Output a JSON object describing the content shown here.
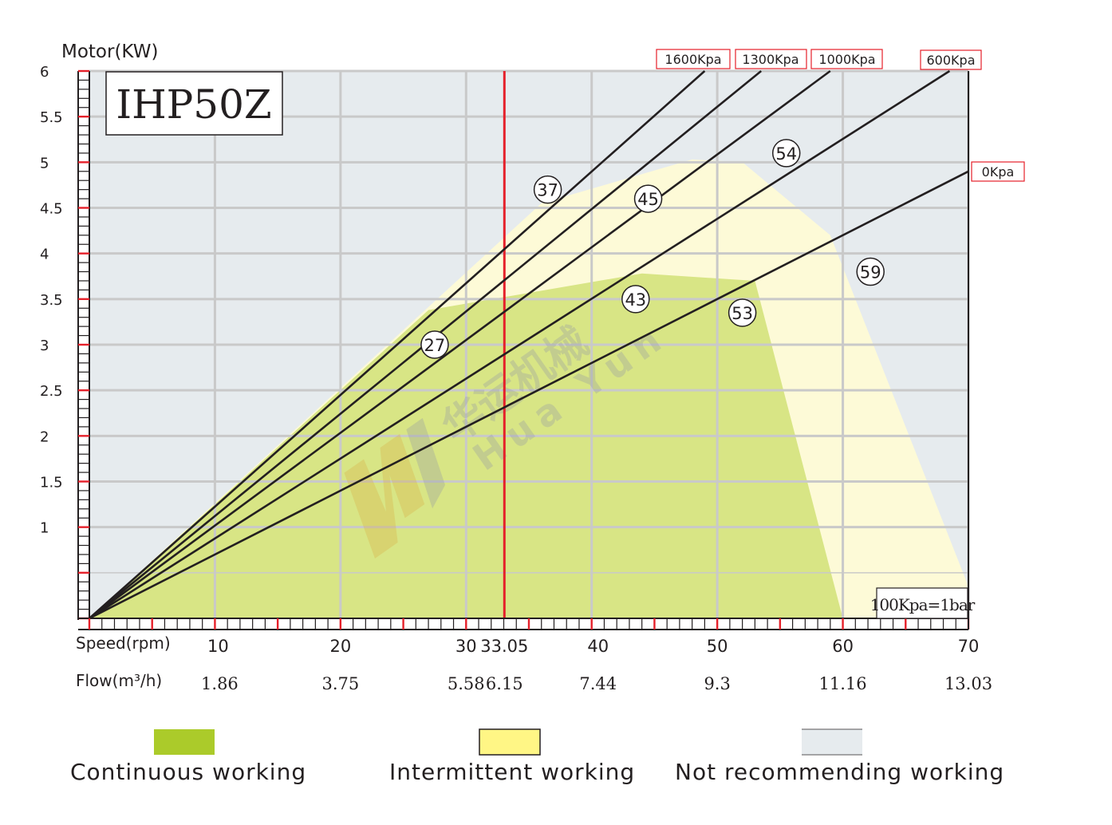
{
  "chart_data": {
    "type": "line",
    "title": "IHP50Z",
    "ylabel": "Motor(KW)",
    "xlabel": "Speed(rpm)",
    "x2label": "Flow(m³/h)",
    "xlim": [
      0,
      70
    ],
    "ylim": [
      0,
      6
    ],
    "y_ticks": [
      1,
      1.5,
      2,
      2.5,
      3,
      3.5,
      4,
      4.5,
      5,
      5.5,
      6
    ],
    "y_tick_labels": [
      "1",
      "1.5",
      "2",
      "2.5",
      "3",
      "3.5",
      "4",
      "4.5",
      "5",
      "5.5",
      "6"
    ],
    "x_ticks": [
      10,
      20,
      30,
      33.05,
      40,
      50,
      60,
      70
    ],
    "x_tick_labels": [
      "10",
      "20",
      "30",
      "33.05",
      "40",
      "50",
      "60",
      "70"
    ],
    "flow_labels": [
      "1.86",
      "3.75",
      "5.58",
      "6.15",
      "7.44",
      "9.3",
      "11.16",
      "13.03"
    ],
    "grid": true,
    "marker_speed": 33.05,
    "note": "100Kpa=1bar",
    "series": [
      {
        "name": "1600Kpa",
        "x": [
          0,
          49
        ],
        "y": [
          0,
          6
        ]
      },
      {
        "name": "1300Kpa",
        "x": [
          0,
          53.5
        ],
        "y": [
          0,
          6
        ]
      },
      {
        "name": "1000Kpa",
        "x": [
          0,
          59
        ],
        "y": [
          0,
          6
        ]
      },
      {
        "name": "600Kpa",
        "x": [
          0,
          68.5
        ],
        "y": [
          0,
          6
        ]
      },
      {
        "name": "0Kpa",
        "x": [
          0,
          70
        ],
        "y": [
          0,
          4.9
        ]
      }
    ],
    "efficiency_labels": [
      {
        "text": "27",
        "x": 27.5,
        "y": 3.0
      },
      {
        "text": "37",
        "x": 36.5,
        "y": 4.7
      },
      {
        "text": "45",
        "x": 44.5,
        "y": 4.6
      },
      {
        "text": "54",
        "x": 55.5,
        "y": 5.1
      },
      {
        "text": "43",
        "x": 43.5,
        "y": 3.5
      },
      {
        "text": "53",
        "x": 52,
        "y": 3.35
      },
      {
        "text": "59",
        "x": 62.2,
        "y": 3.8
      }
    ],
    "zones": [
      {
        "name": "Continuous working",
        "color": "#d8e585",
        "points": [
          [
            0,
            0
          ],
          [
            27,
            3.38
          ],
          [
            44,
            3.78
          ],
          [
            53,
            3.7
          ],
          [
            60,
            0
          ]
        ]
      },
      {
        "name": "Intermittent working",
        "color": "#fdfad7",
        "points": [
          [
            0,
            0
          ],
          [
            36,
            4.55
          ],
          [
            48,
            5.03
          ],
          [
            52,
            5.0
          ],
          [
            59,
            4.2
          ],
          [
            70,
            0.35
          ],
          [
            70,
            0
          ]
        ]
      },
      {
        "name": "Not recommending working",
        "color": "#e6ebee"
      }
    ]
  },
  "legend": [
    {
      "label": "Continuous working",
      "color": "#abcb2a"
    },
    {
      "label": "Intermittent working",
      "color": "#fff685"
    },
    {
      "label": "Not recommending working",
      "color": "#e6ebee"
    }
  ],
  "watermark": {
    "cn": "华运机械",
    "en": "Hua Yun"
  },
  "colors": {
    "axis_red": "#e5202a",
    "grid": "#c9c9c9",
    "line": "#231f20",
    "marker": "#e5202a"
  }
}
